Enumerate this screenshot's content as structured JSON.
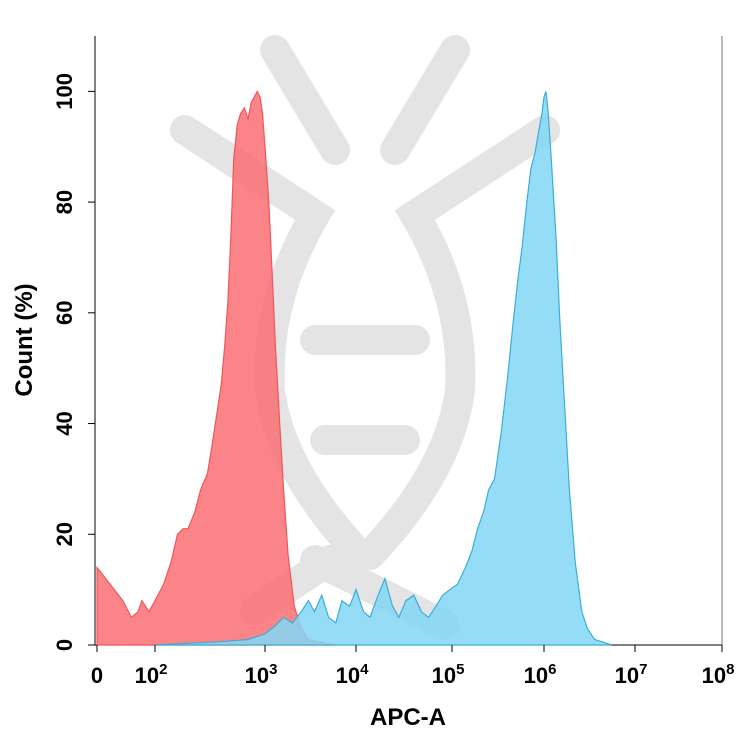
{
  "chart_data": {
    "type": "area",
    "title": "",
    "xlabel": "APC-A",
    "ylabel": "Count (%)",
    "x_scale": "biexponential-log",
    "xlim": [
      0,
      100000000
    ],
    "ylim": [
      0,
      110
    ],
    "grid": false,
    "legend": "none",
    "x_ticks": [
      {
        "value": 0,
        "base": "0",
        "exp": ""
      },
      {
        "value": 100,
        "base": "10",
        "exp": "2"
      },
      {
        "value": 1000,
        "base": "10",
        "exp": "3"
      },
      {
        "value": 10000,
        "base": "10",
        "exp": "4"
      },
      {
        "value": 100000,
        "base": "10",
        "exp": "5"
      },
      {
        "value": 1000000,
        "base": "10",
        "exp": "6"
      },
      {
        "value": 10000000,
        "base": "10",
        "exp": "7"
      },
      {
        "value": 100000000,
        "base": "10",
        "exp": "8"
      }
    ],
    "y_ticks": [
      0,
      20,
      40,
      60,
      80,
      100
    ],
    "series": [
      {
        "color": "#f0555a",
        "fill": "#f96e72",
        "points": [
          [
            0,
            14
          ],
          [
            20,
            8
          ],
          [
            35,
            5
          ],
          [
            50,
            6
          ],
          [
            60,
            8
          ],
          [
            70,
            7
          ],
          [
            80,
            6
          ],
          [
            100,
            8
          ],
          [
            120,
            11
          ],
          [
            140,
            15
          ],
          [
            160,
            20
          ],
          [
            180,
            21
          ],
          [
            200,
            21
          ],
          [
            230,
            24
          ],
          [
            260,
            28
          ],
          [
            300,
            31
          ],
          [
            330,
            36
          ],
          [
            360,
            41
          ],
          [
            400,
            47
          ],
          [
            430,
            54
          ],
          [
            460,
            62
          ],
          [
            490,
            74
          ],
          [
            520,
            88
          ],
          [
            560,
            94
          ],
          [
            600,
            96
          ],
          [
            650,
            97
          ],
          [
            700,
            95
          ],
          [
            750,
            98
          ],
          [
            800,
            99
          ],
          [
            850,
            100
          ],
          [
            900,
            99
          ],
          [
            950,
            96
          ],
          [
            1000,
            90
          ],
          [
            1100,
            80
          ],
          [
            1200,
            67
          ],
          [
            1300,
            54
          ],
          [
            1450,
            40
          ],
          [
            1600,
            28
          ],
          [
            1800,
            16
          ],
          [
            2100,
            7
          ],
          [
            2500,
            3
          ],
          [
            3000,
            1
          ],
          [
            4000,
            0.5
          ],
          [
            6000,
            0
          ]
        ]
      },
      {
        "color": "#3aaed8",
        "fill": "#82d7f5",
        "points": [
          [
            100,
            0
          ],
          [
            200,
            0.3
          ],
          [
            400,
            0.6
          ],
          [
            700,
            1
          ],
          [
            1000,
            2
          ],
          [
            1300,
            3.5
          ],
          [
            1600,
            5
          ],
          [
            2000,
            4
          ],
          [
            2500,
            6
          ],
          [
            3000,
            8
          ],
          [
            3500,
            6
          ],
          [
            4200,
            9
          ],
          [
            5000,
            5
          ],
          [
            6000,
            4
          ],
          [
            7000,
            8
          ],
          [
            8500,
            7
          ],
          [
            10000,
            10
          ],
          [
            12000,
            6
          ],
          [
            14000,
            5
          ],
          [
            17000,
            9
          ],
          [
            20000,
            12
          ],
          [
            24000,
            7
          ],
          [
            28000,
            5
          ],
          [
            33000,
            8
          ],
          [
            40000,
            9
          ],
          [
            48000,
            6
          ],
          [
            57000,
            5
          ],
          [
            68000,
            7
          ],
          [
            80000,
            9
          ],
          [
            95000,
            10
          ],
          [
            115000,
            11
          ],
          [
            140000,
            14
          ],
          [
            165000,
            17
          ],
          [
            190000,
            21
          ],
          [
            220000,
            24
          ],
          [
            250000,
            28
          ],
          [
            290000,
            30
          ],
          [
            340000,
            38
          ],
          [
            400000,
            48
          ],
          [
            460000,
            58
          ],
          [
            520000,
            66
          ],
          [
            580000,
            72
          ],
          [
            650000,
            80
          ],
          [
            720000,
            86
          ],
          [
            800000,
            89
          ],
          [
            880000,
            93
          ],
          [
            950000,
            96
          ],
          [
            1000000,
            99
          ],
          [
            1050000,
            100
          ],
          [
            1100000,
            97
          ],
          [
            1200000,
            88
          ],
          [
            1350000,
            74
          ],
          [
            1500000,
            58
          ],
          [
            1700000,
            42
          ],
          [
            1900000,
            28
          ],
          [
            2200000,
            15
          ],
          [
            2600000,
            6
          ],
          [
            3000000,
            3
          ],
          [
            3600000,
            1
          ],
          [
            4500000,
            0.5
          ],
          [
            5500000,
            0
          ]
        ]
      }
    ]
  }
}
